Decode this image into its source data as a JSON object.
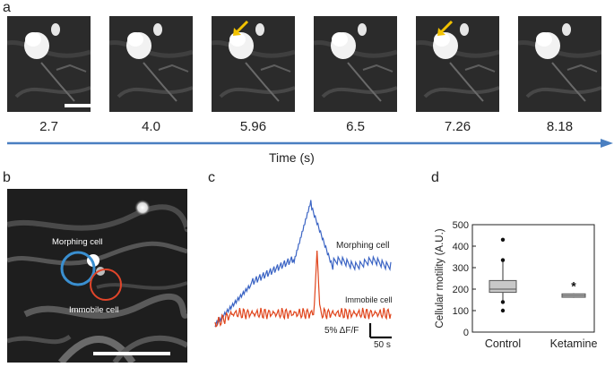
{
  "panels": {
    "a": {
      "letter": "a",
      "time_points": [
        "2.7",
        "4.0",
        "5.96",
        "6.5",
        "7.26",
        "8.18"
      ],
      "arrow_frames": [
        2,
        4
      ],
      "axis_label": "Time (s)",
      "arrow_color": "#f2c200",
      "timeline_color": "#4a7fc1"
    },
    "b": {
      "letter": "b",
      "label_morphing": "Morphing cell",
      "label_immobile": "Immobile cell",
      "morphing_circle_color": "#3a8fd0",
      "immobile_circle_color": "#e0452a"
    },
    "c": {
      "letter": "c",
      "label_morphing": "Morphing cell",
      "label_immobile": "Immobile cell",
      "scale_y": "5% ΔF/F",
      "scale_x": "50 s",
      "morphing_color": "#3b64c4",
      "immobile_color": "#e0451c"
    },
    "d": {
      "letter": "d"
    }
  },
  "chart_data": {
    "type": "box",
    "categories": [
      "Control",
      "Ketamine"
    ],
    "ylabel": "Cellular motility (A.U.)",
    "xlabel": "",
    "ylim": [
      0,
      500
    ],
    "yticks": [
      "0",
      "100",
      "200",
      "300",
      "400",
      "500"
    ],
    "series": [
      {
        "category": "Control",
        "whisker_low": 140,
        "q1": 185,
        "median": 200,
        "q3": 240,
        "whisker_high": 330,
        "outliers": [
          430,
          335,
          140,
          100
        ]
      },
      {
        "category": "Ketamine",
        "whisker_low": 160,
        "q1": 162,
        "median": 170,
        "q3": 178,
        "whisker_high": 180,
        "outliers": []
      }
    ],
    "annotations": [
      {
        "category": "Ketamine",
        "text": "*"
      }
    ],
    "box_color": "#c8c8c8"
  }
}
